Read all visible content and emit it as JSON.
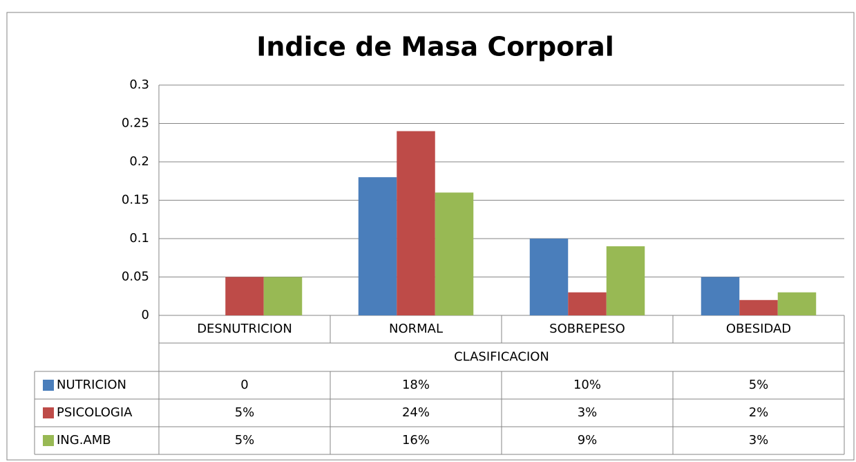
{
  "chart_data": {
    "type": "bar",
    "title": "Indice de Masa Corporal",
    "x_label": "CLASIFICACION",
    "categories": [
      "DESNUTRICION",
      "NORMAL",
      "SOBREPESO",
      "OBESIDAD"
    ],
    "series": [
      {
        "name": "NUTRICION",
        "color": "#4a7ebb",
        "values": [
          0,
          0.18,
          0.1,
          0.05
        ],
        "value_labels": [
          "0",
          "18%",
          "10%",
          "5%"
        ]
      },
      {
        "name": "PSICOLOGIA",
        "color": "#be4b48",
        "values": [
          0.05,
          0.24,
          0.03,
          0.02
        ],
        "value_labels": [
          "5%",
          "24%",
          "3%",
          "2%"
        ]
      },
      {
        "name": "ING.AMB",
        "color": "#98b954",
        "values": [
          0.05,
          0.16,
          0.09,
          0.03
        ],
        "value_labels": [
          "5%",
          "16%",
          "9%",
          "3%"
        ]
      }
    ],
    "ylim": [
      0,
      0.3
    ],
    "yticks": [
      0,
      0.05,
      0.1,
      0.15,
      0.2,
      0.25,
      0.3
    ],
    "grid": true
  }
}
